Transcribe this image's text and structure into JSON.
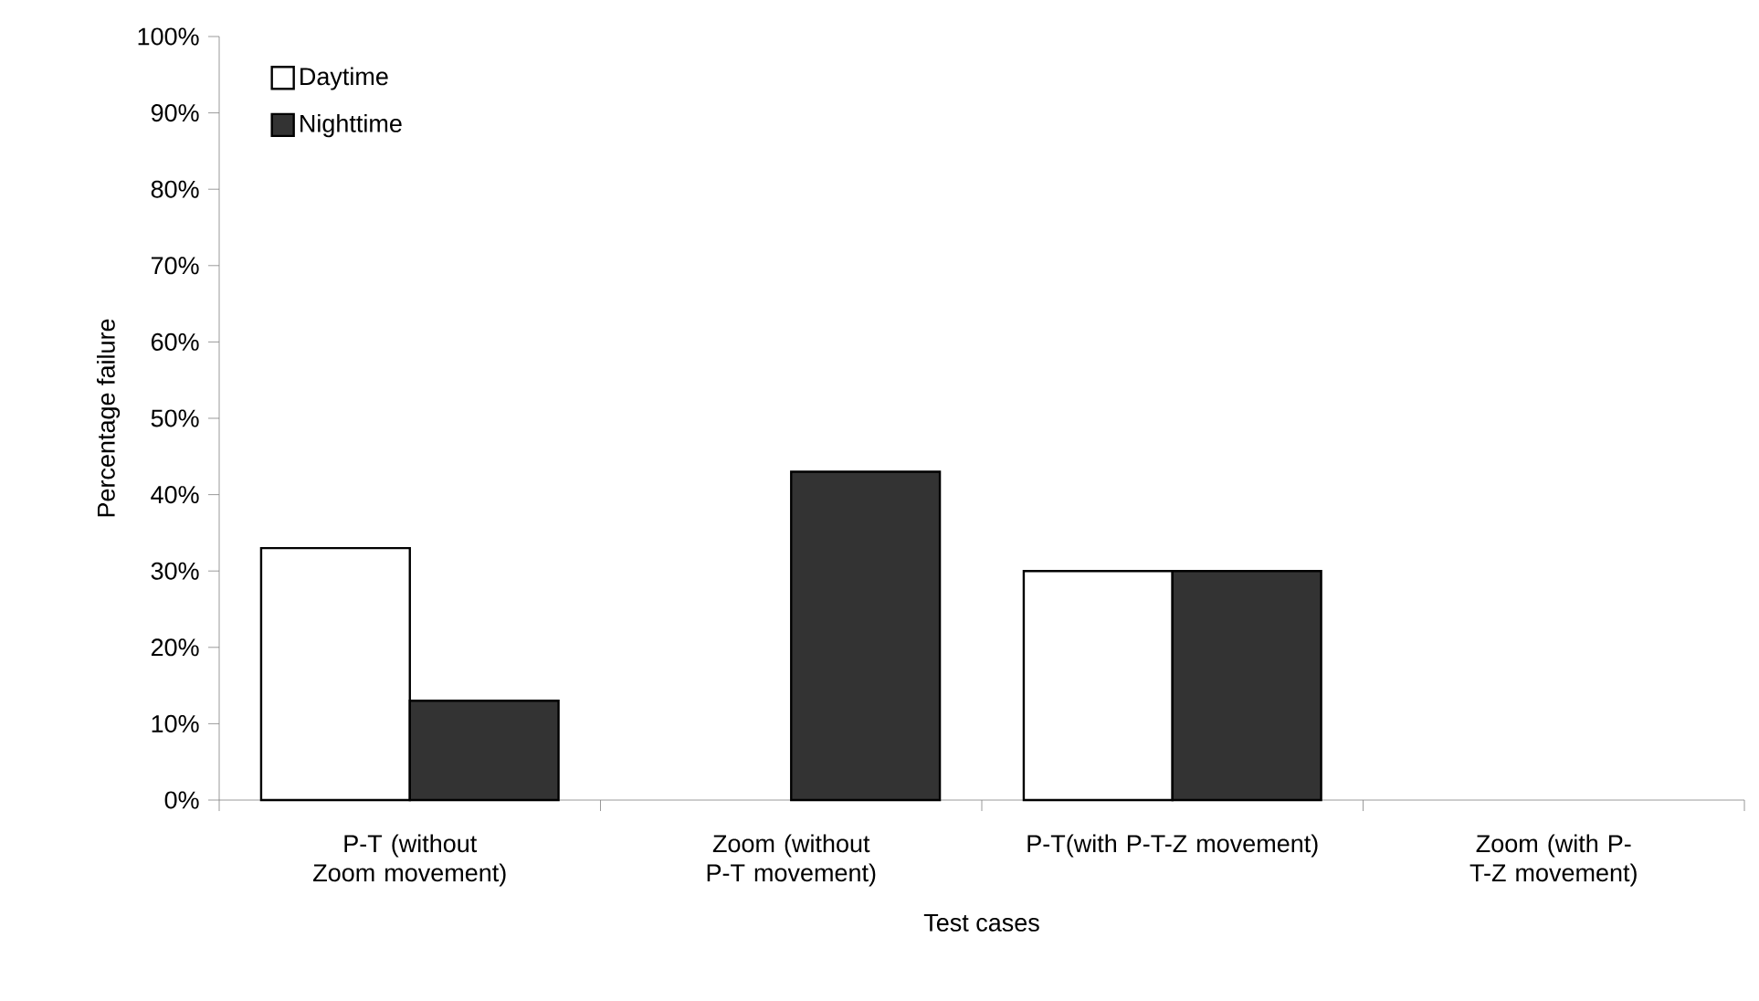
{
  "chart_data": {
    "type": "bar",
    "xlabel": "Test cases",
    "ylabel": "Percentage failure",
    "categories": [
      "P-T (without Zoom movement)",
      "Zoom (without P-T movement)",
      "P-T(with P-T-Z movement)",
      "Zoom (with P-T-Z movement)"
    ],
    "series": [
      {
        "name": "Daytime",
        "color": "#ffffff",
        "values": [
          33,
          0,
          30,
          0
        ]
      },
      {
        "name": "Nighttime",
        "color": "#333333",
        "values": [
          13,
          43,
          30,
          0
        ]
      }
    ],
    "ylim": [
      0,
      100
    ],
    "yticks": [
      {
        "value": 0,
        "label": "0%"
      },
      {
        "value": 10,
        "label": "10%"
      },
      {
        "value": 20,
        "label": "20%"
      },
      {
        "value": 30,
        "label": "30%"
      },
      {
        "value": 40,
        "label": "40%"
      },
      {
        "value": 50,
        "label": "50%"
      },
      {
        "value": 60,
        "label": "60%"
      },
      {
        "value": 70,
        "label": "70%"
      },
      {
        "value": 80,
        "label": "80%"
      },
      {
        "value": 90,
        "label": "90%"
      },
      {
        "value": 100,
        "label": "100%"
      }
    ],
    "legend": "top left",
    "grid": false
  }
}
